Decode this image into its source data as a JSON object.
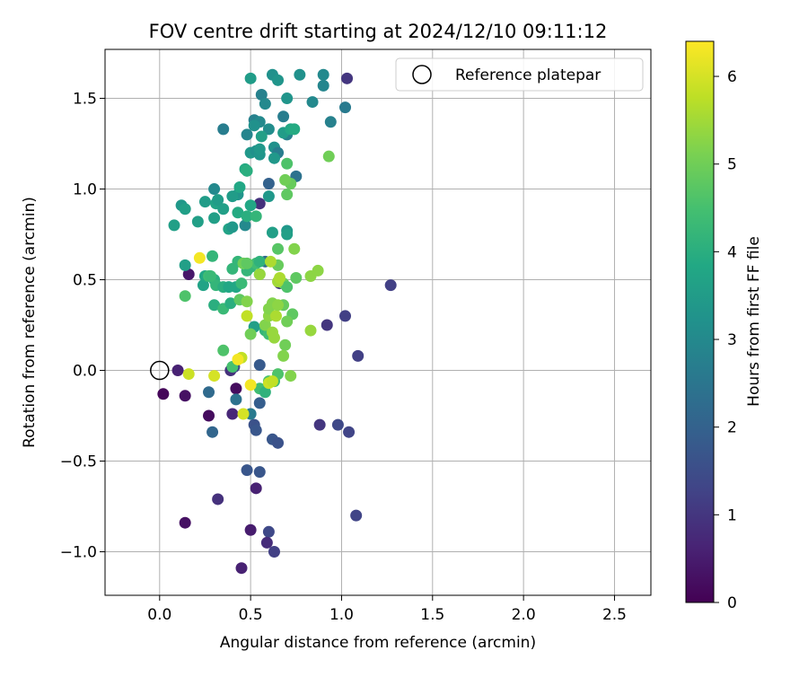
{
  "chart_data": {
    "type": "scatter",
    "title": "FOV centre drift starting at 2024/12/10 09:11:12",
    "xlabel": "Angular distance from reference (arcmin)",
    "ylabel": "Rotation from reference (arcmin)",
    "xlim": [
      -0.3,
      2.7
    ],
    "ylim": [
      -1.24,
      1.77
    ],
    "xticks": [
      0.0,
      0.5,
      1.0,
      1.5,
      2.0,
      2.5
    ],
    "xtick_labels": [
      "0.0",
      "0.5",
      "1.0",
      "1.5",
      "2.0",
      "2.5"
    ],
    "yticks": [
      -1.0,
      -0.5,
      0.0,
      0.5,
      1.0,
      1.5
    ],
    "ytick_labels": [
      "−1.0",
      "−0.5",
      "0.0",
      "0.5",
      "1.0",
      "1.5"
    ],
    "grid": true,
    "legend": {
      "position": "top-right",
      "entries": [
        "Reference platepar"
      ]
    },
    "reference_point": {
      "x": 0.0,
      "y": 0.0
    },
    "colorbar": {
      "label": "Hours from first FF file",
      "min": 0,
      "max": 6.4,
      "ticks": [
        0,
        1,
        2,
        3,
        4,
        5,
        6
      ],
      "tick_labels": [
        "0",
        "1",
        "2",
        "3",
        "4",
        "5",
        "6"
      ],
      "colormap": "viridis"
    },
    "points": [
      [
        0.02,
        -0.13,
        0.1
      ],
      [
        0.14,
        -0.14,
        0.3
      ],
      [
        0.1,
        0.0,
        0.6
      ],
      [
        0.16,
        0.53,
        0.4
      ],
      [
        0.14,
        -0.84,
        0.3
      ],
      [
        0.27,
        -0.25,
        0.2
      ],
      [
        0.32,
        -0.71,
        0.9
      ],
      [
        0.4,
        -0.24,
        0.7
      ],
      [
        0.42,
        -0.1,
        0.2
      ],
      [
        0.39,
        0.0,
        0.9
      ],
      [
        0.41,
        0.02,
        1.3
      ],
      [
        0.45,
        -1.09,
        0.6
      ],
      [
        0.5,
        -0.88,
        0.5
      ],
      [
        0.53,
        -0.65,
        0.6
      ],
      [
        0.55,
        -0.56,
        1.7
      ],
      [
        0.48,
        -0.55,
        1.7
      ],
      [
        0.52,
        -0.3,
        1.6
      ],
      [
        0.53,
        -0.33,
        1.7
      ],
      [
        0.55,
        -0.18,
        1.9
      ],
      [
        0.55,
        0.03,
        1.8
      ],
      [
        0.6,
        -0.89,
        1.4
      ],
      [
        0.59,
        -0.95,
        0.8
      ],
      [
        0.63,
        -1.0,
        1.2
      ],
      [
        0.62,
        -0.38,
        1.7
      ],
      [
        0.65,
        -0.4,
        1.6
      ],
      [
        0.88,
        -0.3,
        1.0
      ],
      [
        0.98,
        -0.3,
        1.4
      ],
      [
        1.04,
        -0.34,
        1.3
      ],
      [
        1.08,
        -0.8,
        1.3
      ],
      [
        1.09,
        0.08,
        1.2
      ],
      [
        1.02,
        0.3,
        1.2
      ],
      [
        0.92,
        0.25,
        1.0
      ],
      [
        1.27,
        0.47,
        1.2
      ],
      [
        1.03,
        1.61,
        1.0
      ],
      [
        0.66,
        0.48,
        1.0
      ],
      [
        0.55,
        0.92,
        0.9
      ],
      [
        0.29,
        -0.34,
        2.1
      ],
      [
        0.27,
        -0.12,
        2.2
      ],
      [
        0.42,
        -0.16,
        2.4
      ],
      [
        0.5,
        -0.24,
        2.6
      ],
      [
        0.58,
        0.6,
        2.2
      ],
      [
        0.6,
        1.03,
        2.0
      ],
      [
        0.56,
        1.52,
        2.8
      ],
      [
        0.3,
        1.0,
        3.0
      ],
      [
        0.35,
        1.33,
        2.7
      ],
      [
        0.43,
        0.97,
        3.3
      ],
      [
        0.47,
        0.8,
        3.0
      ],
      [
        0.52,
        1.38,
        2.8
      ],
      [
        0.48,
        1.3,
        2.9
      ],
      [
        0.55,
        1.37,
        3.0
      ],
      [
        0.6,
        1.33,
        3.1
      ],
      [
        0.58,
        1.47,
        3.0
      ],
      [
        0.63,
        1.23,
        3.2
      ],
      [
        0.65,
        1.2,
        2.7
      ],
      [
        0.62,
        1.63,
        3.2
      ],
      [
        0.65,
        1.6,
        3.3
      ],
      [
        0.68,
        1.4,
        2.7
      ],
      [
        0.7,
        1.5,
        3.3
      ],
      [
        0.7,
        1.3,
        2.8
      ],
      [
        0.75,
        1.07,
        2.4
      ],
      [
        0.77,
        1.63,
        3.2
      ],
      [
        0.84,
        1.48,
        3.0
      ],
      [
        0.9,
        1.63,
        3.0
      ],
      [
        0.9,
        1.57,
        2.9
      ],
      [
        0.94,
        1.37,
        2.8
      ],
      [
        1.02,
        1.45,
        2.6
      ],
      [
        0.5,
        1.61,
        3.5
      ],
      [
        0.5,
        1.2,
        3.4
      ],
      [
        0.52,
        1.35,
        3.2
      ],
      [
        0.53,
        1.21,
        3.2
      ],
      [
        0.55,
        1.19,
        3.3
      ],
      [
        0.55,
        1.22,
        3.4
      ],
      [
        0.56,
        1.29,
        3.6
      ],
      [
        0.6,
        0.96,
        3.4
      ],
      [
        0.63,
        1.17,
        3.4
      ],
      [
        0.62,
        0.76,
        3.6
      ],
      [
        0.7,
        0.77,
        3.4
      ],
      [
        0.7,
        0.75,
        3.6
      ],
      [
        0.68,
        1.31,
        3.5
      ],
      [
        0.72,
        1.33,
        3.8
      ],
      [
        0.74,
        1.33,
        3.9
      ],
      [
        0.12,
        0.91,
        3.4
      ],
      [
        0.14,
        0.89,
        3.6
      ],
      [
        0.08,
        0.8,
        3.6
      ],
      [
        0.21,
        0.82,
        3.6
      ],
      [
        0.25,
        0.93,
        3.5
      ],
      [
        0.3,
        0.84,
        3.6
      ],
      [
        0.31,
        0.92,
        3.7
      ],
      [
        0.32,
        0.94,
        3.5
      ],
      [
        0.35,
        0.89,
        3.6
      ],
      [
        0.4,
        0.96,
        3.5
      ],
      [
        0.44,
        1.01,
        3.8
      ],
      [
        0.38,
        0.78,
        3.7
      ],
      [
        0.4,
        0.79,
        3.4
      ],
      [
        0.47,
        1.11,
        3.9
      ],
      [
        0.48,
        1.1,
        4.0
      ],
      [
        0.43,
        0.87,
        3.9
      ],
      [
        0.48,
        0.85,
        4.0
      ],
      [
        0.5,
        0.91,
        3.8
      ],
      [
        0.53,
        0.85,
        4.2
      ],
      [
        0.14,
        0.58,
        3.6
      ],
      [
        0.24,
        0.47,
        3.7
      ],
      [
        0.25,
        0.52,
        3.8
      ],
      [
        0.29,
        0.63,
        4.2
      ],
      [
        0.3,
        0.5,
        4.0
      ],
      [
        0.31,
        0.47,
        4.2
      ],
      [
        0.35,
        0.46,
        4.0
      ],
      [
        0.38,
        0.46,
        3.8
      ],
      [
        0.42,
        0.46,
        3.8
      ],
      [
        0.3,
        0.36,
        4.0
      ],
      [
        0.35,
        0.34,
        4.3
      ],
      [
        0.39,
        0.37,
        4.0
      ],
      [
        0.4,
        0.56,
        4.2
      ],
      [
        0.43,
        0.6,
        4.2
      ],
      [
        0.45,
        0.48,
        4.3
      ],
      [
        0.48,
        0.55,
        4.2
      ],
      [
        0.5,
        0.57,
        4.2
      ],
      [
        0.53,
        0.59,
        4.4
      ],
      [
        0.55,
        0.6,
        4.1
      ],
      [
        0.55,
        0.53,
        4.5
      ],
      [
        0.52,
        0.24,
        3.6
      ],
      [
        0.58,
        0.22,
        4.2
      ],
      [
        0.6,
        0.2,
        4.4
      ],
      [
        0.55,
        -0.1,
        4.4
      ],
      [
        0.58,
        -0.12,
        4.1
      ],
      [
        0.6,
        -0.06,
        4.5
      ],
      [
        0.63,
        -0.06,
        4.3
      ],
      [
        0.65,
        -0.02,
        4.6
      ],
      [
        0.35,
        0.11,
        4.6
      ],
      [
        0.4,
        0.02,
        4.5
      ],
      [
        0.7,
        0.97,
        4.8
      ],
      [
        0.72,
        1.03,
        4.9
      ],
      [
        0.7,
        1.14,
        4.6
      ],
      [
        0.69,
        1.05,
        5.0
      ],
      [
        0.65,
        0.67,
        4.7
      ],
      [
        0.65,
        0.58,
        4.9
      ],
      [
        0.68,
        0.48,
        4.9
      ],
      [
        0.7,
        0.46,
        4.6
      ],
      [
        0.73,
        0.31,
        4.8
      ],
      [
        0.75,
        0.51,
        4.8
      ],
      [
        0.68,
        0.36,
        4.9
      ],
      [
        0.7,
        0.27,
        5.0
      ],
      [
        0.69,
        0.14,
        5.0
      ],
      [
        0.68,
        0.08,
        5.2
      ],
      [
        0.72,
        -0.03,
        5.2
      ],
      [
        0.83,
        0.52,
        5.3
      ],
      [
        0.87,
        0.55,
        5.3
      ],
      [
        0.83,
        0.22,
        5.4
      ],
      [
        0.74,
        0.67,
        5.2
      ],
      [
        0.93,
        1.18,
        5.0
      ],
      [
        0.14,
        0.41,
        4.6
      ],
      [
        0.27,
        0.52,
        4.4
      ],
      [
        0.28,
        0.52,
        4.3
      ],
      [
        0.44,
        0.39,
        4.8
      ],
      [
        0.46,
        0.59,
        5.0
      ],
      [
        0.48,
        0.59,
        4.8
      ],
      [
        0.48,
        0.38,
        5.2
      ],
      [
        0.5,
        0.2,
        5.0
      ],
      [
        0.55,
        0.53,
        5.4
      ],
      [
        0.58,
        0.25,
        5.2
      ],
      [
        0.6,
        0.3,
        5.3
      ],
      [
        0.6,
        0.34,
        5.2
      ],
      [
        0.62,
        0.21,
        5.4
      ],
      [
        0.63,
        0.18,
        5.4
      ],
      [
        0.62,
        0.37,
        5.2
      ],
      [
        0.64,
        0.3,
        5.6
      ],
      [
        0.65,
        0.36,
        5.3
      ],
      [
        0.61,
        0.6,
        5.6
      ],
      [
        0.65,
        0.49,
        5.5
      ],
      [
        0.66,
        0.51,
        5.6
      ],
      [
        0.48,
        0.3,
        5.8
      ],
      [
        0.45,
        0.07,
        5.8
      ],
      [
        0.46,
        -0.24,
        6.0
      ],
      [
        0.6,
        -0.07,
        5.9
      ],
      [
        0.62,
        -0.06,
        5.8
      ],
      [
        0.3,
        -0.03,
        6.0
      ],
      [
        0.16,
        -0.02,
        5.9
      ],
      [
        0.22,
        0.62,
        6.3
      ],
      [
        0.43,
        0.06,
        6.3
      ],
      [
        0.5,
        -0.08,
        6.3
      ]
    ]
  }
}
